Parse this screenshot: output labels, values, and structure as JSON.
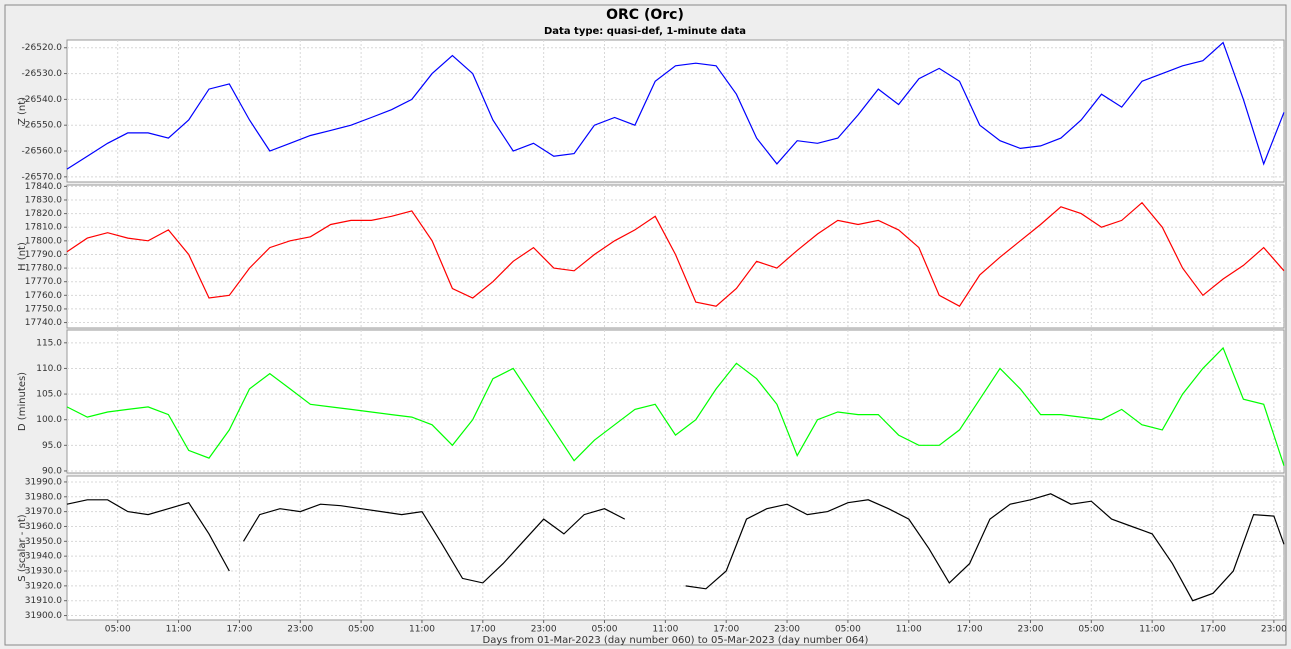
{
  "title": "ORC (Orc)",
  "subtitle": "Data type: quasi-def, 1-minute data",
  "chart_data": [
    {
      "type": "line",
      "ylabel": "Z (nt)",
      "ylim": [
        -26572,
        -26517
      ],
      "yticks": [
        {
          "value": -26570,
          "label": "-26570.0"
        },
        {
          "value": -26560,
          "label": "-26560.0"
        },
        {
          "value": -26550,
          "label": "-26550.0"
        },
        {
          "value": -26540,
          "label": "-26540.0"
        },
        {
          "value": -26530,
          "label": "-26530.0"
        },
        {
          "value": -26520,
          "label": "-26520.0"
        }
      ],
      "grid": true,
      "x": [
        0,
        2,
        4,
        6,
        8,
        10,
        12,
        14,
        16,
        18,
        20,
        22,
        24,
        26,
        28,
        30,
        32,
        34,
        36,
        38,
        40,
        42,
        44,
        46,
        48,
        50,
        52,
        54,
        56,
        58,
        60,
        62,
        64,
        66,
        68,
        70,
        72,
        74,
        76,
        78,
        80,
        82,
        84,
        86,
        88,
        90,
        92,
        94,
        96,
        98,
        100,
        102,
        104,
        106,
        108,
        110,
        112,
        114,
        116,
        118,
        120
      ],
      "series": [
        {
          "color": "#0000ff",
          "values": [
            -26567,
            -26562,
            -26557,
            -26553,
            -26553,
            -26555,
            -26548,
            -26536,
            -26534,
            -26548,
            -26560,
            -26557,
            -26554,
            -26552,
            -26550,
            -26547,
            -26544,
            -26540,
            -26530,
            -26523,
            -26530,
            -26548,
            -26560,
            -26557,
            -26562,
            -26561,
            -26550,
            -26547,
            -26550,
            -26533,
            -26527,
            -26526,
            -26527,
            -26538,
            -26555,
            -26565,
            -26556,
            -26557,
            -26555,
            -26546,
            -26536,
            -26542,
            -26532,
            -26528,
            -26533,
            -26550,
            -26556,
            -26559,
            -26558,
            -26555,
            -26548,
            -26538,
            -26543,
            -26533,
            -26530,
            -26527,
            -26525,
            -26518,
            -26540,
            -26565,
            -26545
          ]
        }
      ]
    },
    {
      "type": "line",
      "ylabel": "H (nt)",
      "ylim": [
        17736,
        17841
      ],
      "yticks": [
        {
          "value": 17740,
          "label": "17740.0"
        },
        {
          "value": 17750,
          "label": "17750.0"
        },
        {
          "value": 17760,
          "label": "17760.0"
        },
        {
          "value": 17770,
          "label": "17770.0"
        },
        {
          "value": 17780,
          "label": "17780.0"
        },
        {
          "value": 17790,
          "label": "17790.0"
        },
        {
          "value": 17800,
          "label": "17800.0"
        },
        {
          "value": 17810,
          "label": "17810.0"
        },
        {
          "value": 17820,
          "label": "17820.0"
        },
        {
          "value": 17830,
          "label": "17830.0"
        },
        {
          "value": 17840,
          "label": "17840.0"
        }
      ],
      "grid": true,
      "x": [
        0,
        2,
        4,
        6,
        8,
        10,
        12,
        14,
        16,
        18,
        20,
        22,
        24,
        26,
        28,
        30,
        32,
        34,
        36,
        38,
        40,
        42,
        44,
        46,
        48,
        50,
        52,
        54,
        56,
        58,
        60,
        62,
        64,
        66,
        68,
        70,
        72,
        74,
        76,
        78,
        80,
        82,
        84,
        86,
        88,
        90,
        92,
        94,
        96,
        98,
        100,
        102,
        104,
        106,
        108,
        110,
        112,
        114,
        116,
        118,
        120
      ],
      "series": [
        {
          "color": "#ff0000",
          "values": [
            17792,
            17802,
            17806,
            17802,
            17800,
            17808,
            17790,
            17758,
            17760,
            17780,
            17795,
            17800,
            17803,
            17812,
            17815,
            17815,
            17818,
            17822,
            17800,
            17765,
            17758,
            17770,
            17785,
            17795,
            17780,
            17778,
            17790,
            17800,
            17808,
            17818,
            17790,
            17755,
            17752,
            17765,
            17785,
            17780,
            17793,
            17805,
            17815,
            17812,
            17815,
            17808,
            17795,
            17760,
            17752,
            17775,
            17788,
            17800,
            17812,
            17825,
            17820,
            17810,
            17815,
            17828,
            17810,
            17780,
            17760,
            17772,
            17782,
            17795,
            17778
          ]
        }
      ]
    },
    {
      "type": "line",
      "ylabel": "D (minutes)",
      "ylim": [
        89.6,
        117.5
      ],
      "yticks": [
        {
          "value": 90,
          "label": "90.0"
        },
        {
          "value": 95,
          "label": "95.0"
        },
        {
          "value": 100,
          "label": "100.0"
        },
        {
          "value": 105,
          "label": "105.0"
        },
        {
          "value": 110,
          "label": "110.0"
        },
        {
          "value": 115,
          "label": "115.0"
        }
      ],
      "grid": true,
      "x": [
        0,
        2,
        4,
        6,
        8,
        10,
        12,
        14,
        16,
        18,
        20,
        22,
        24,
        26,
        28,
        30,
        32,
        34,
        36,
        38,
        40,
        42,
        44,
        46,
        48,
        50,
        52,
        54,
        56,
        58,
        60,
        62,
        64,
        66,
        68,
        70,
        72,
        74,
        76,
        78,
        80,
        82,
        84,
        86,
        88,
        90,
        92,
        94,
        96,
        98,
        100,
        102,
        104,
        106,
        108,
        110,
        112,
        114,
        116,
        118,
        120
      ],
      "series": [
        {
          "color": "#00ff00",
          "values": [
            102.5,
            100.5,
            101.5,
            102,
            102.5,
            101,
            94,
            92.5,
            98,
            106,
            109,
            106,
            103,
            102.5,
            102,
            101.5,
            101,
            100.5,
            99,
            95,
            100,
            108,
            110,
            104,
            98,
            92,
            96,
            99,
            102,
            103,
            97,
            100,
            106,
            111,
            108,
            103,
            93,
            100,
            101.5,
            101,
            101,
            97,
            95,
            95,
            98,
            104,
            110,
            106,
            101,
            101,
            100.5,
            100,
            102,
            99,
            98,
            105,
            110,
            114,
            104,
            103,
            91
          ]
        }
      ]
    },
    {
      "type": "line",
      "ylabel": "S (scalar - nt)",
      "ylim": [
        31897,
        31994
      ],
      "yticks": [
        {
          "value": 31900,
          "label": "31900.0"
        },
        {
          "value": 31910,
          "label": "31910.0"
        },
        {
          "value": 31920,
          "label": "31920.0"
        },
        {
          "value": 31930,
          "label": "31930.0"
        },
        {
          "value": 31940,
          "label": "31940.0"
        },
        {
          "value": 31950,
          "label": "31950.0"
        },
        {
          "value": 31960,
          "label": "31960.0"
        },
        {
          "value": 31970,
          "label": "31970.0"
        },
        {
          "value": 31980,
          "label": "31980.0"
        },
        {
          "value": 31990,
          "label": "31990.0"
        }
      ],
      "grid": true,
      "xlabel": "Days from 01-Mar-2023 (day number 060) to 05-Mar-2023 (day number 064)",
      "xlim": [
        0,
        120
      ],
      "xticks": [
        {
          "value": 5,
          "label": "05:00"
        },
        {
          "value": 11,
          "label": "11:00"
        },
        {
          "value": 17,
          "label": "17:00"
        },
        {
          "value": 23,
          "label": "23:00"
        },
        {
          "value": 29,
          "label": "05:00"
        },
        {
          "value": 35,
          "label": "11:00"
        },
        {
          "value": 41,
          "label": "17:00"
        },
        {
          "value": 47,
          "label": "23:00"
        },
        {
          "value": 53,
          "label": "05:00"
        },
        {
          "value": 59,
          "label": "11:00"
        },
        {
          "value": 65,
          "label": "17:00"
        },
        {
          "value": 71,
          "label": "23:00"
        },
        {
          "value": 77,
          "label": "05:00"
        },
        {
          "value": 83,
          "label": "11:00"
        },
        {
          "value": 89,
          "label": "17:00"
        },
        {
          "value": 95,
          "label": "23:00"
        },
        {
          "value": 101,
          "label": "05:00"
        },
        {
          "value": 107,
          "label": "11:00"
        },
        {
          "value": 113,
          "label": "17:00"
        },
        {
          "value": 119,
          "label": "23:00"
        }
      ],
      "x": [
        0,
        2,
        4,
        6,
        8,
        10,
        12,
        14,
        16,
        16.7,
        17.4,
        19,
        21,
        23,
        25,
        27,
        29,
        31,
        33,
        35,
        37,
        39,
        41,
        43,
        45,
        47,
        49,
        51,
        53,
        55,
        58,
        61,
        63,
        65,
        67,
        69,
        71,
        73,
        75,
        77,
        79,
        81,
        83,
        85,
        87,
        89,
        91,
        93,
        95,
        97,
        99,
        101,
        103,
        105,
        107,
        109,
        111,
        113,
        115,
        117,
        119,
        120
      ],
      "series": [
        {
          "color": "#000000",
          "values": [
            31975,
            31978,
            31978,
            31970,
            31968,
            31972,
            31976,
            31955,
            31930,
            null,
            31950,
            31968,
            31972,
            31970,
            31975,
            31974,
            31972,
            31970,
            31968,
            31970,
            31948,
            31925,
            31922,
            31935,
            31950,
            31965,
            31955,
            31968,
            31972,
            31965,
            null,
            31920,
            31918,
            31930,
            31965,
            31972,
            31975,
            31968,
            31970,
            31976,
            31978,
            31972,
            31965,
            31945,
            31922,
            31935,
            31965,
            31975,
            31978,
            31982,
            31975,
            31977,
            31965,
            31960,
            31955,
            31935,
            31910,
            31915,
            31930,
            31968,
            31967,
            31948
          ]
        }
      ]
    }
  ]
}
